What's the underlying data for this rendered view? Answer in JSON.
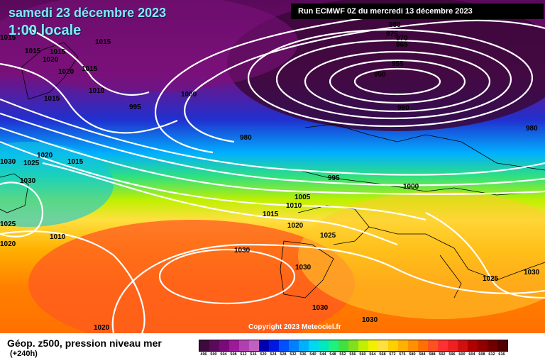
{
  "header": {
    "date_title": "samedi 23 décembre 2023",
    "time_title": "1:00 locale",
    "run_info": "Run ECMWF 0Z du mercredi 13 décembre 2023"
  },
  "copyright": "Copyright 2023 Meteociel.fr",
  "footer": {
    "field_label": "Géop. z500, pression niveau mer",
    "lead_label": "(+240h)"
  },
  "scale": {
    "labels": [
      "496",
      "500",
      "504",
      "508",
      "512",
      "516",
      "520",
      "524",
      "528",
      "532",
      "536",
      "540",
      "544",
      "548",
      "552",
      "556",
      "560",
      "564",
      "568",
      "572",
      "576",
      "580",
      "584",
      "588",
      "592",
      "596",
      "600",
      "604",
      "608",
      "612",
      "616"
    ],
    "colors": [
      "#3c0a3c",
      "#5a0a5a",
      "#7a0a7a",
      "#9a1a9a",
      "#b040b0",
      "#c060c0",
      "#0000b0",
      "#0018e0",
      "#0050ff",
      "#0080ff",
      "#00b0ff",
      "#00d8f0",
      "#00e8c0",
      "#20f080",
      "#40e040",
      "#80e020",
      "#c0f000",
      "#f0f000",
      "#ffe040",
      "#ffd000",
      "#ffb000",
      "#ff9000",
      "#ff7000",
      "#ff5020",
      "#ff3030",
      "#ee2020",
      "#d01010",
      "#b00000",
      "#900000",
      "#700000",
      "#500000"
    ]
  },
  "map": {
    "background_description": "geopotential height color fill",
    "isobar_labels": [
      {
        "text": "1015"
      },
      {
        "text": "1015"
      },
      {
        "text": "1015"
      },
      {
        "text": "1020"
      },
      {
        "text": "1020"
      },
      {
        "text": "1015"
      },
      {
        "text": "1010"
      },
      {
        "text": "1015"
      },
      {
        "text": "995"
      },
      {
        "text": "1000"
      },
      {
        "text": "980"
      },
      {
        "text": "975"
      },
      {
        "text": "970"
      },
      {
        "text": "965"
      },
      {
        "text": "955"
      },
      {
        "text": "950"
      },
      {
        "text": "960"
      },
      {
        "text": "980"
      },
      {
        "text": "980"
      },
      {
        "text": "1020"
      },
      {
        "text": "1030"
      },
      {
        "text": "1025"
      },
      {
        "text": "1015"
      },
      {
        "text": "1030"
      },
      {
        "text": "995"
      },
      {
        "text": "1000"
      },
      {
        "text": "1005"
      },
      {
        "text": "1010"
      },
      {
        "text": "1015"
      },
      {
        "text": "1020"
      },
      {
        "text": "1025"
      },
      {
        "text": "1010"
      },
      {
        "text": "1025"
      },
      {
        "text": "1020"
      },
      {
        "text": "1030"
      },
      {
        "text": "1030"
      },
      {
        "text": "1030"
      },
      {
        "text": "1030"
      },
      {
        "text": "1025"
      },
      {
        "text": "1030"
      },
      {
        "text": "1020"
      },
      {
        "text": "1015"
      }
    ]
  }
}
